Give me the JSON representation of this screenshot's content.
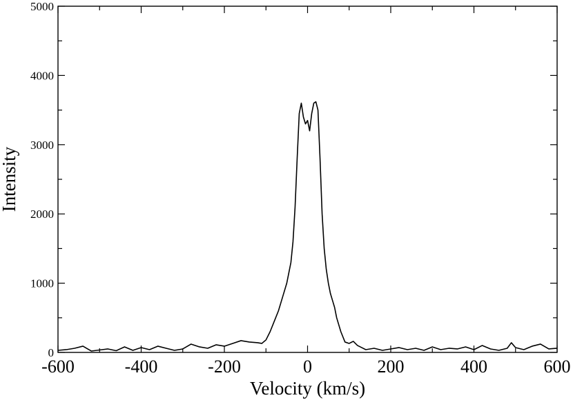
{
  "chart_data": {
    "type": "line",
    "xlabel": "Velocity (km/s)",
    "ylabel": "Intensity",
    "xlim": [
      -600,
      600
    ],
    "ylim": [
      0,
      5000
    ],
    "x_major_ticks": [
      -600,
      -400,
      -200,
      0,
      200,
      400,
      600
    ],
    "x_tick_labels": [
      "-600",
      "-400",
      "-200",
      "0",
      "200",
      "400",
      "600"
    ],
    "x_minor_step": 100,
    "y_major_ticks": [
      0,
      1000,
      2000,
      3000,
      4000,
      5000
    ],
    "y_tick_labels": [
      "0",
      "1000",
      "2000",
      "3000",
      "4000",
      "5000"
    ],
    "y_minor_step": 500,
    "grid": false,
    "legend": "none",
    "line_color": "#000000",
    "series": [
      {
        "x": [
          -600,
          -580,
          -560,
          -540,
          -520,
          -500,
          -480,
          -460,
          -440,
          -420,
          -400,
          -380,
          -360,
          -340,
          -320,
          -300,
          -280,
          -260,
          -240,
          -220,
          -200,
          -180,
          -160,
          -140,
          -120,
          -110,
          -100,
          -90,
          -80,
          -70,
          -60,
          -50,
          -45,
          -40,
          -35,
          -30,
          -25,
          -20,
          -15,
          -10,
          -5,
          0,
          5,
          10,
          15,
          20,
          25,
          30,
          35,
          40,
          45,
          50,
          55,
          60,
          65,
          70,
          80,
          90,
          100,
          110,
          120,
          130,
          140,
          160,
          180,
          200,
          220,
          240,
          260,
          280,
          300,
          320,
          340,
          360,
          380,
          400,
          420,
          440,
          460,
          480,
          490,
          500,
          520,
          540,
          560,
          580,
          600
        ],
        "y": [
          30,
          40,
          60,
          90,
          20,
          35,
          50,
          25,
          80,
          30,
          70,
          40,
          90,
          60,
          30,
          50,
          120,
          80,
          60,
          110,
          90,
          130,
          170,
          150,
          140,
          130,
          180,
          300,
          450,
          600,
          800,
          1000,
          1150,
          1300,
          1600,
          2100,
          2800,
          3450,
          3600,
          3400,
          3300,
          3350,
          3200,
          3450,
          3600,
          3620,
          3500,
          2800,
          2000,
          1500,
          1200,
          1000,
          850,
          750,
          650,
          500,
          300,
          150,
          130,
          160,
          100,
          70,
          40,
          60,
          30,
          50,
          70,
          40,
          60,
          30,
          80,
          40,
          60,
          50,
          80,
          40,
          100,
          50,
          30,
          60,
          140,
          70,
          40,
          90,
          120,
          50,
          60
        ]
      }
    ]
  }
}
